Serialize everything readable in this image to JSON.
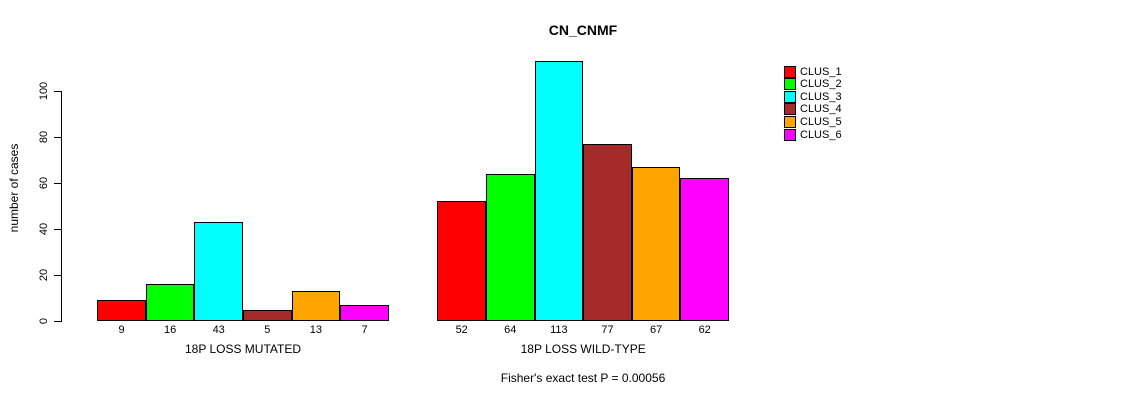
{
  "chart_data": {
    "type": "bar",
    "title": "CN_CNMF",
    "ylabel": "number of cases",
    "xlabel": "",
    "yticks": [
      0,
      20,
      40,
      60,
      80,
      100
    ],
    "ylim": [
      0,
      115
    ],
    "grid": false,
    "legend_position": "right",
    "categories": [
      "18P LOSS MUTATED",
      "18P LOSS WILD-TYPE"
    ],
    "series": [
      {
        "name": "CLUS_1",
        "color": "#FF0000",
        "values": [
          9,
          52
        ]
      },
      {
        "name": "CLUS_2",
        "color": "#00FF00",
        "values": [
          16,
          64
        ]
      },
      {
        "name": "CLUS_3",
        "color": "#00FFFF",
        "values": [
          43,
          113
        ]
      },
      {
        "name": "CLUS_4",
        "color": "#A52A2A",
        "values": [
          5,
          77
        ]
      },
      {
        "name": "CLUS_5",
        "color": "#FFA500",
        "values": [
          13,
          67
        ]
      },
      {
        "name": "CLUS_6",
        "color": "#FF00FF",
        "values": [
          7,
          62
        ]
      }
    ],
    "bar_value_labels_shown": true,
    "annotation": "Fisher's exact test P = 0.00056"
  }
}
